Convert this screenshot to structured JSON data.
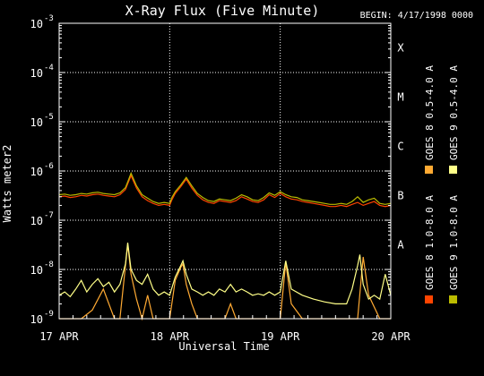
{
  "chart_data": {
    "type": "line",
    "title": "X-Ray Flux (Five Minute)",
    "begin_label": "BEGIN: 4/17/1998 0000",
    "ylabel": "Watts meter2",
    "xlabel": "Universal Time",
    "y_scale": "log",
    "ylim": [
      1e-09,
      0.001
    ],
    "y_ticks": [
      {
        "value": 0.001,
        "base": "10",
        "exp": "-3"
      },
      {
        "value": 0.0001,
        "base": "10",
        "exp": "-4"
      },
      {
        "value": 1e-05,
        "base": "10",
        "exp": "-5"
      },
      {
        "value": 1e-06,
        "base": "10",
        "exp": "-6"
      },
      {
        "value": 1e-07,
        "base": "10",
        "exp": "-7"
      },
      {
        "value": 1e-08,
        "base": "10",
        "exp": "-8"
      },
      {
        "value": 1e-09,
        "base": "10",
        "exp": "-9"
      }
    ],
    "x_ticks": [
      {
        "day": 0,
        "label": "17 APR"
      },
      {
        "day": 1,
        "label": "18 APR"
      },
      {
        "day": 2,
        "label": "19 APR"
      },
      {
        "day": 3,
        "label": "20 APR"
      }
    ],
    "flare_classes": [
      {
        "label": "X",
        "value": 0.0001
      },
      {
        "label": "M",
        "value": 1e-05
      },
      {
        "label": "C",
        "value": 1e-06
      },
      {
        "label": "B",
        "value": 1e-07
      },
      {
        "label": "A",
        "value": 1e-08
      }
    ],
    "grid": true,
    "legend_position": "right",
    "series": [
      {
        "name": "GOES 8 1.0-8.0 A",
        "color": "#ff4400",
        "x": [
          0,
          0.05,
          0.1,
          0.15,
          0.2,
          0.25,
          0.3,
          0.35,
          0.4,
          0.45,
          0.5,
          0.55,
          0.6,
          0.62,
          0.65,
          0.7,
          0.75,
          0.8,
          0.85,
          0.9,
          0.95,
          1.0,
          1.02,
          1.05,
          1.1,
          1.15,
          1.2,
          1.25,
          1.3,
          1.35,
          1.4,
          1.45,
          1.5,
          1.55,
          1.6,
          1.65,
          1.7,
          1.75,
          1.8,
          1.85,
          1.9,
          1.95,
          2.0,
          2.05,
          2.1,
          2.15,
          2.2,
          2.25,
          2.3,
          2.35,
          2.4,
          2.45,
          2.5,
          2.55,
          2.6,
          2.65,
          2.7,
          2.75,
          2.8,
          2.85,
          2.9,
          2.95,
          3.0
        ],
        "y": [
          3e-07,
          3.1e-07,
          2.9e-07,
          3e-07,
          3.2e-07,
          3.1e-07,
          3.3e-07,
          3.4e-07,
          3.2e-07,
          3.1e-07,
          3e-07,
          3.3e-07,
          4.2e-07,
          5.5e-07,
          8e-07,
          4.5e-07,
          3e-07,
          2.5e-07,
          2.2e-07,
          2e-07,
          2.1e-07,
          2e-07,
          2.6e-07,
          3.5e-07,
          4.8e-07,
          6.8e-07,
          4.5e-07,
          3.2e-07,
          2.6e-07,
          2.3e-07,
          2.2e-07,
          2.5e-07,
          2.4e-07,
          2.3e-07,
          2.5e-07,
          3e-07,
          2.7e-07,
          2.4e-07,
          2.3e-07,
          2.6e-07,
          3.3e-07,
          2.9e-07,
          3.5e-07,
          3e-07,
          2.7e-07,
          2.6e-07,
          2.4e-07,
          2.3e-07,
          2.2e-07,
          2.1e-07,
          2e-07,
          1.9e-07,
          1.9e-07,
          2e-07,
          1.9e-07,
          2.1e-07,
          2.3e-07,
          2e-07,
          2.2e-07,
          2.4e-07,
          2e-07,
          1.9e-07,
          2e-07
        ]
      },
      {
        "name": "GOES 8 0.5-4.0 A",
        "color": "#ffaa33",
        "x": [
          0,
          0.1,
          0.2,
          0.3,
          0.4,
          0.5,
          0.55,
          0.6,
          0.62,
          0.65,
          0.7,
          0.75,
          0.8,
          0.85,
          0.9,
          0.95,
          1.0,
          1.05,
          1.1,
          1.12,
          1.15,
          1.2,
          1.25,
          1.3,
          1.35,
          1.4,
          1.5,
          1.55,
          1.6,
          1.65,
          1.7,
          1.8,
          1.9,
          2.0,
          2.05,
          2.1,
          2.2,
          2.3,
          2.4,
          2.5,
          2.6,
          2.7,
          2.75,
          2.8,
          2.9,
          3.0
        ],
        "y": [
          1e-09,
          1e-09,
          1e-09,
          1.5e-09,
          4e-09,
          1e-09,
          1e-09,
          1.2e-08,
          3.2e-08,
          8e-09,
          2.5e-09,
          1e-09,
          3e-09,
          1e-09,
          1e-09,
          1e-09,
          1e-09,
          6e-09,
          1.1e-08,
          1.3e-08,
          5e-09,
          2e-09,
          1e-09,
          1e-09,
          1e-09,
          1e-09,
          1e-09,
          2e-09,
          1e-09,
          1e-09,
          1e-09,
          1e-09,
          1e-09,
          1e-09,
          1.4e-08,
          2e-09,
          1e-09,
          1e-09,
          1e-09,
          1e-09,
          1e-09,
          1e-09,
          1.8e-08,
          3e-09,
          1e-09,
          1e-09
        ]
      },
      {
        "name": "GOES 9 1.0-8.0 A",
        "color": "#bbbb00",
        "x": [
          0,
          0.05,
          0.1,
          0.15,
          0.2,
          0.25,
          0.3,
          0.35,
          0.4,
          0.45,
          0.5,
          0.55,
          0.6,
          0.62,
          0.65,
          0.7,
          0.75,
          0.8,
          0.85,
          0.9,
          0.95,
          1.0,
          1.02,
          1.05,
          1.1,
          1.15,
          1.2,
          1.25,
          1.3,
          1.35,
          1.4,
          1.45,
          1.5,
          1.55,
          1.6,
          1.65,
          1.7,
          1.75,
          1.8,
          1.85,
          1.9,
          1.95,
          2.0,
          2.05,
          2.1,
          2.15,
          2.2,
          2.25,
          2.3,
          2.35,
          2.4,
          2.45,
          2.5,
          2.55,
          2.6,
          2.65,
          2.7,
          2.75,
          2.8,
          2.85,
          2.9,
          2.95,
          3.0
        ],
        "y": [
          3.3e-07,
          3.4e-07,
          3.2e-07,
          3.3e-07,
          3.5e-07,
          3.4e-07,
          3.6e-07,
          3.7e-07,
          3.5e-07,
          3.4e-07,
          3.3e-07,
          3.6e-07,
          4.6e-07,
          6e-07,
          9e-07,
          5e-07,
          3.3e-07,
          2.8e-07,
          2.4e-07,
          2.2e-07,
          2.3e-07,
          2.2e-07,
          2.9e-07,
          3.8e-07,
          5.2e-07,
          7.4e-07,
          5e-07,
          3.5e-07,
          2.9e-07,
          2.5e-07,
          2.4e-07,
          2.7e-07,
          2.6e-07,
          2.5e-07,
          2.8e-07,
          3.3e-07,
          3e-07,
          2.6e-07,
          2.5e-07,
          2.9e-07,
          3.6e-07,
          3.2e-07,
          3.8e-07,
          3.3e-07,
          3e-07,
          2.9e-07,
          2.6e-07,
          2.5e-07,
          2.4e-07,
          2.3e-07,
          2.2e-07,
          2.1e-07,
          2.1e-07,
          2.2e-07,
          2.1e-07,
          2.4e-07,
          3e-07,
          2.3e-07,
          2.6e-07,
          2.8e-07,
          2.2e-07,
          2.1e-07,
          2.2e-07
        ]
      },
      {
        "name": "GOES 9 0.5-4.0 A",
        "color": "#ffff88",
        "x": [
          0,
          0.05,
          0.1,
          0.15,
          0.2,
          0.25,
          0.3,
          0.35,
          0.4,
          0.45,
          0.5,
          0.55,
          0.6,
          0.62,
          0.65,
          0.7,
          0.75,
          0.8,
          0.85,
          0.9,
          0.95,
          1.0,
          1.05,
          1.1,
          1.12,
          1.15,
          1.2,
          1.25,
          1.3,
          1.35,
          1.4,
          1.45,
          1.5,
          1.55,
          1.6,
          1.65,
          1.7,
          1.75,
          1.8,
          1.85,
          1.9,
          1.95,
          2.0,
          2.05,
          2.1,
          2.2,
          2.3,
          2.4,
          2.5,
          2.6,
          2.65,
          2.7,
          2.72,
          2.75,
          2.8,
          2.85,
          2.9,
          2.95,
          3.0
        ],
        "y": [
          3e-09,
          3.5e-09,
          2.8e-09,
          4e-09,
          6e-09,
          3.5e-09,
          5e-09,
          6.5e-09,
          4.5e-09,
          5.5e-09,
          3.5e-09,
          5e-09,
          1.3e-08,
          3.5e-08,
          1e-08,
          6e-09,
          5e-09,
          8e-09,
          4e-09,
          3e-09,
          3.5e-09,
          3e-09,
          7e-09,
          1.2e-08,
          1.5e-08,
          8e-09,
          4e-09,
          3.5e-09,
          3e-09,
          3.5e-09,
          3e-09,
          4e-09,
          3.5e-09,
          5e-09,
          3.5e-09,
          4e-09,
          3.5e-09,
          3e-09,
          3.2e-09,
          3e-09,
          3.5e-09,
          3e-09,
          3.5e-09,
          1.5e-08,
          4e-09,
          3e-09,
          2.5e-09,
          2.2e-09,
          2e-09,
          2e-09,
          4e-09,
          1.2e-08,
          2e-08,
          5e-09,
          2.5e-09,
          3e-09,
          2.5e-09,
          8e-09,
          3e-09
        ]
      }
    ]
  }
}
